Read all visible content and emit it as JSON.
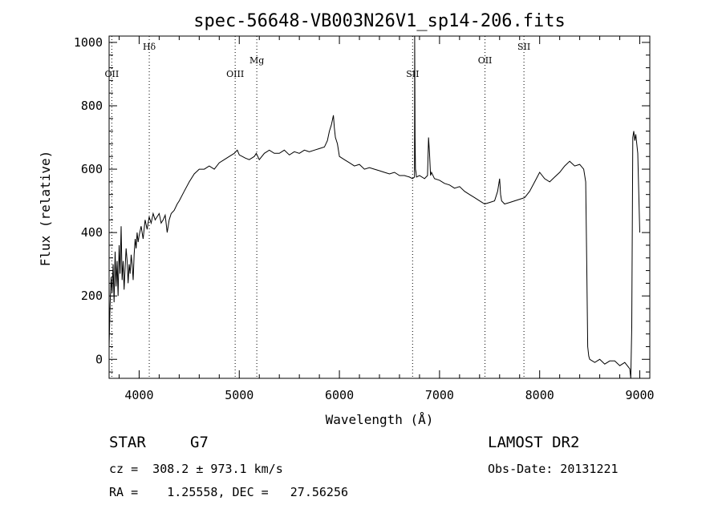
{
  "chart_data": {
    "type": "line",
    "title": "spec-56648-VB003N26V1_sp14-206.fits",
    "xlabel": "Wavelength (Å)",
    "ylabel": "Flux (relative)",
    "xlim": [
      3700,
      9100
    ],
    "ylim": [
      -60,
      1020
    ],
    "xticks": [
      4000,
      5000,
      6000,
      7000,
      8000,
      9000
    ],
    "yticks": [
      0,
      200,
      400,
      600,
      800,
      1000
    ],
    "grid": false,
    "series": [
      {
        "x": [
          3700,
          3710,
          3720,
          3730,
          3740,
          3750,
          3760,
          3770,
          3780,
          3790,
          3800,
          3810,
          3820,
          3830,
          3840,
          3850,
          3860,
          3870,
          3880,
          3890,
          3900,
          3910,
          3920,
          3930,
          3940,
          3950,
          3960,
          3970,
          3980,
          3990,
          4000,
          4020,
          4040,
          4060,
          4080,
          4100,
          4120,
          4140,
          4160,
          4180,
          4200,
          4220,
          4240,
          4260,
          4280,
          4300,
          4320,
          4350,
          4380,
          4400,
          4450,
          4500,
          4550,
          4600,
          4650,
          4700,
          4750,
          4800,
          4850,
          4900,
          4950,
          4980,
          5000,
          5030,
          5060,
          5100,
          5150,
          5170,
          5200,
          5250,
          5300,
          5350,
          5400,
          5450,
          5500,
          5550,
          5600,
          5650,
          5700,
          5750,
          5800,
          5850,
          5880,
          5900,
          5920,
          5940,
          5950,
          5960,
          5980,
          6000,
          6050,
          6100,
          6150,
          6200,
          6250,
          6300,
          6350,
          6400,
          6450,
          6500,
          6550,
          6600,
          6650,
          6700,
          6730,
          6750,
          6752,
          6756,
          6760,
          6765,
          6770,
          6800,
          6850,
          6880,
          6890,
          6900,
          6910,
          6920,
          6950,
          7000,
          7050,
          7100,
          7150,
          7200,
          7250,
          7300,
          7350,
          7400,
          7450,
          7500,
          7550,
          7580,
          7600,
          7610,
          7620,
          7650,
          7700,
          7750,
          7800,
          7850,
          7900,
          7950,
          8000,
          8050,
          8100,
          8150,
          8200,
          8250,
          8300,
          8350,
          8400,
          8440,
          8460,
          8470,
          8480,
          8490,
          8500,
          8550,
          8600,
          8650,
          8700,
          8750,
          8800,
          8850,
          8900,
          8910,
          8920,
          8930,
          8940,
          8950,
          8960,
          8980,
          9000
        ],
        "y": [
          40,
          170,
          260,
          210,
          300,
          180,
          340,
          230,
          310,
          200,
          360,
          270,
          420,
          250,
          310,
          220,
          290,
          350,
          310,
          240,
          300,
          270,
          330,
          300,
          250,
          330,
          380,
          350,
          400,
          370,
          390,
          420,
          380,
          440,
          410,
          450,
          430,
          460,
          440,
          450,
          460,
          430,
          440,
          455,
          400,
          440,
          460,
          470,
          490,
          500,
          530,
          560,
          585,
          600,
          600,
          610,
          600,
          620,
          630,
          640,
          650,
          660,
          645,
          640,
          635,
          630,
          640,
          650,
          630,
          650,
          660,
          650,
          650,
          660,
          645,
          655,
          650,
          660,
          655,
          660,
          665,
          670,
          690,
          720,
          740,
          770,
          730,
          700,
          680,
          640,
          630,
          620,
          610,
          615,
          600,
          605,
          600,
          595,
          590,
          585,
          590,
          580,
          580,
          575,
          570,
          575,
          1020,
          700,
          600,
          590,
          575,
          580,
          570,
          580,
          700,
          650,
          580,
          590,
          570,
          565,
          555,
          550,
          540,
          545,
          530,
          520,
          510,
          500,
          490,
          495,
          500,
          530,
          570,
          520,
          500,
          490,
          495,
          500,
          505,
          510,
          530,
          560,
          590,
          570,
          560,
          575,
          590,
          610,
          625,
          610,
          615,
          600,
          560,
          300,
          40,
          10,
          0,
          -10,
          0,
          -15,
          -5,
          -5,
          -20,
          -10,
          -30,
          -60,
          100,
          700,
          720,
          690,
          710,
          650,
          400
        ]
      }
    ],
    "line_markers": [
      {
        "label": "OII",
        "wavelength": 3727,
        "label_level": "low"
      },
      {
        "label": "Hδ",
        "wavelength": 4101,
        "label_level": "high"
      },
      {
        "label": "OIII",
        "wavelength": 4959,
        "label_level": "low"
      },
      {
        "label": "Mg",
        "wavelength": 5175,
        "label_level": "mid"
      },
      {
        "label": "SII",
        "wavelength": 6731,
        "label_level": "low"
      },
      {
        "label": "OII",
        "wavelength": 7454,
        "label_level": "mid"
      },
      {
        "label": "SII",
        "wavelength": 7843,
        "label_level": "high"
      }
    ]
  },
  "info": {
    "class": "STAR",
    "subclass": "G7",
    "redshift": "cz =  308.2 ± 973.1 km/s",
    "coords": "RA =    1.25558, DEC =   27.56256",
    "survey": "LAMOST DR2",
    "obs_date": "Obs-Date: 20131221"
  }
}
